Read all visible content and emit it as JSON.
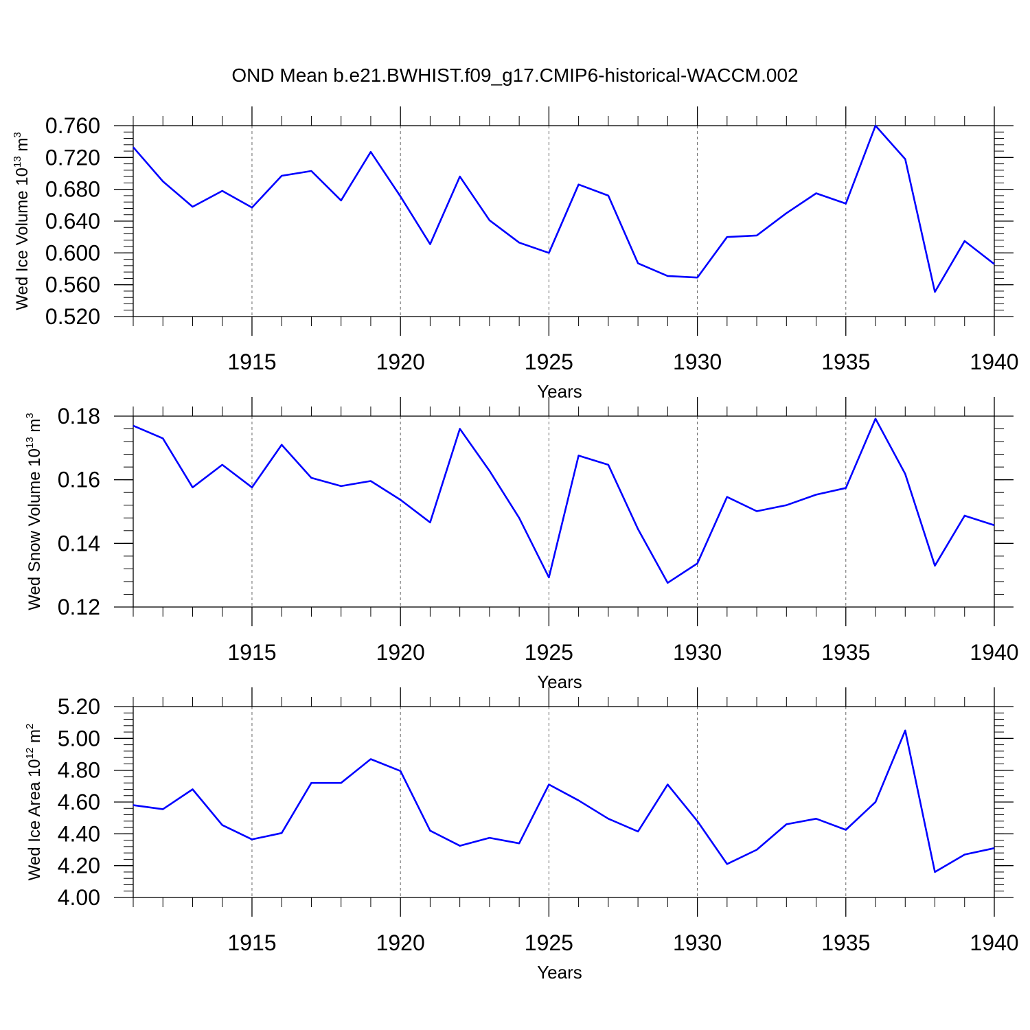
{
  "chart_data": [
    {
      "type": "line",
      "title": "OND Mean b.e21.BWHIST.f09_g17.CMIP6-historical-WACCM.002",
      "ylabel": "Wed Ice Volume 10",
      "ylabel_sup": "13",
      "ylabel_unit": " m",
      "ylabel_unit_sup": "3",
      "xlabel": "Years",
      "xlim": [
        1911,
        1940
      ],
      "ylim": [
        0.52,
        0.76
      ],
      "yticks": [
        0.52,
        0.56,
        0.6,
        0.64,
        0.68,
        0.72,
        0.76
      ],
      "ytick_labels": [
        "0.520",
        "0.560",
        "0.600",
        "0.640",
        "0.680",
        "0.720",
        "0.760"
      ],
      "xticks": [
        1915,
        1920,
        1925,
        1930,
        1935,
        1940
      ],
      "xtick_labels": [
        "1915",
        "1920",
        "1925",
        "1930",
        "1935",
        "1940"
      ],
      "grid": "vertical dashed at major years",
      "x": [
        1911,
        1912,
        1913,
        1914,
        1915,
        1916,
        1917,
        1918,
        1919,
        1920,
        1921,
        1922,
        1923,
        1924,
        1925,
        1926,
        1927,
        1928,
        1929,
        1930,
        1931,
        1932,
        1933,
        1934,
        1935,
        1936,
        1937,
        1938,
        1939,
        1940
      ],
      "series": [
        {
          "name": "Wed Ice Volume",
          "color": "#0000ff",
          "values": [
            0.733,
            0.69,
            0.658,
            0.678,
            0.657,
            0.697,
            0.703,
            0.666,
            0.727,
            0.671,
            0.611,
            0.696,
            0.641,
            0.613,
            0.6,
            0.686,
            0.672,
            0.587,
            0.571,
            0.569,
            0.62,
            0.622,
            0.65,
            0.675,
            0.662,
            0.76,
            0.718,
            0.551,
            0.615,
            0.586
          ]
        }
      ]
    },
    {
      "type": "line",
      "ylabel": "Wed Snow Volume 10",
      "ylabel_sup": "13",
      "ylabel_unit": " m",
      "ylabel_unit_sup": "3",
      "xlabel": "Years",
      "xlim": [
        1911,
        1940
      ],
      "ylim": [
        0.12,
        0.18
      ],
      "yticks": [
        0.12,
        0.14,
        0.16,
        0.18
      ],
      "ytick_labels": [
        "0.12",
        "0.14",
        "0.16",
        "0.18"
      ],
      "xticks": [
        1915,
        1920,
        1925,
        1930,
        1935,
        1940
      ],
      "xtick_labels": [
        "1915",
        "1920",
        "1925",
        "1930",
        "1935",
        "1940"
      ],
      "grid": "vertical dashed at major years",
      "x": [
        1911,
        1912,
        1913,
        1914,
        1915,
        1916,
        1917,
        1918,
        1919,
        1920,
        1921,
        1922,
        1923,
        1924,
        1925,
        1926,
        1927,
        1928,
        1929,
        1930,
        1931,
        1932,
        1933,
        1934,
        1935,
        1936,
        1937,
        1938,
        1939,
        1940
      ],
      "series": [
        {
          "name": "Wed Snow Volume",
          "color": "#0000ff",
          "values": [
            0.177,
            0.173,
            0.1576,
            0.1647,
            0.1576,
            0.171,
            0.1606,
            0.158,
            0.1596,
            0.1537,
            0.1466,
            0.176,
            0.1628,
            0.148,
            0.1293,
            0.1676,
            0.1647,
            0.1445,
            0.1276,
            0.1337,
            0.1546,
            0.1501,
            0.152,
            0.1553,
            0.1574,
            0.1792,
            0.1618,
            0.133,
            0.1487,
            0.1457
          ]
        }
      ]
    },
    {
      "type": "line",
      "ylabel": "Wed Ice Area 10",
      "ylabel_sup": "12",
      "ylabel_unit": " m",
      "ylabel_unit_sup": "2",
      "xlabel": "Years",
      "xlim": [
        1911,
        1940
      ],
      "ylim": [
        4.0,
        5.2
      ],
      "yticks": [
        4.0,
        4.2,
        4.4,
        4.6,
        4.8,
        5.0,
        5.2
      ],
      "ytick_labels": [
        "4.00",
        "4.20",
        "4.40",
        "4.60",
        "4.80",
        "5.00",
        "5.20"
      ],
      "xticks": [
        1915,
        1920,
        1925,
        1930,
        1935,
        1940
      ],
      "xtick_labels": [
        "1915",
        "1920",
        "1925",
        "1930",
        "1935",
        "1940"
      ],
      "grid": "vertical dashed at major years",
      "x": [
        1911,
        1912,
        1913,
        1914,
        1915,
        1916,
        1917,
        1918,
        1919,
        1920,
        1921,
        1922,
        1923,
        1924,
        1925,
        1926,
        1927,
        1928,
        1929,
        1930,
        1931,
        1932,
        1933,
        1934,
        1935,
        1936,
        1937,
        1938,
        1939,
        1940
      ],
      "series": [
        {
          "name": "Wed Ice Area",
          "color": "#0000ff",
          "values": [
            4.58,
            4.555,
            4.68,
            4.455,
            4.365,
            4.405,
            4.72,
            4.72,
            4.87,
            4.795,
            4.42,
            4.325,
            4.375,
            4.34,
            4.71,
            4.61,
            4.495,
            4.415,
            4.71,
            4.48,
            4.21,
            4.3,
            4.46,
            4.495,
            4.425,
            4.6,
            5.05,
            4.16,
            4.27,
            4.31
          ]
        }
      ]
    }
  ]
}
